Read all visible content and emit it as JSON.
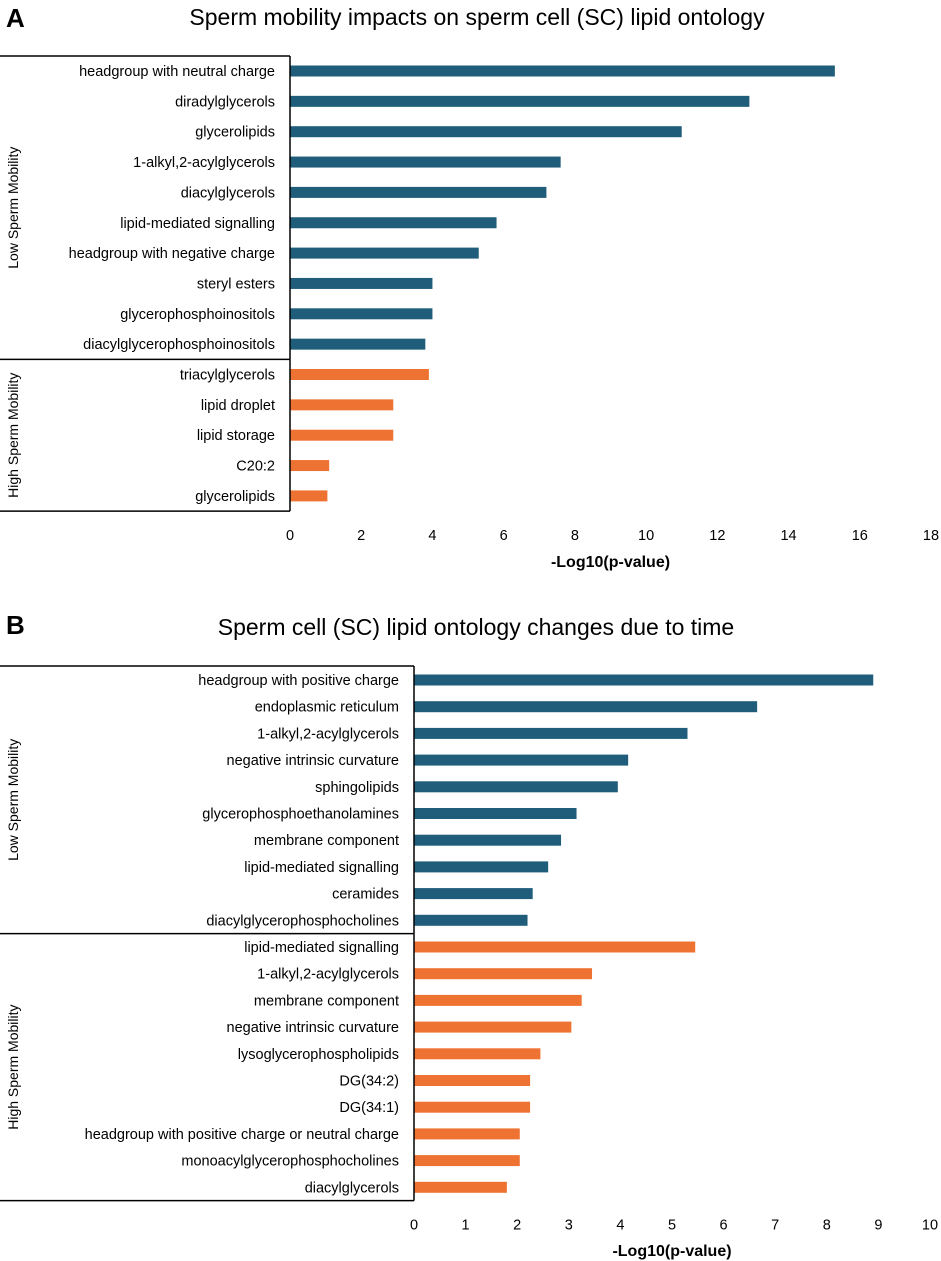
{
  "colors": {
    "low": "#1f5d7a",
    "high": "#ee7333",
    "frame": "#000000"
  },
  "chart_data": [
    {
      "type": "bar",
      "orientation": "horizontal",
      "panel_label": "A",
      "title": "Sperm mobility impacts on sperm cell (SC) lipid ontology",
      "xlabel": "-Log10(p-value)",
      "xlim": [
        0,
        18
      ],
      "xticks": [
        0,
        2,
        4,
        6,
        8,
        10,
        12,
        14,
        16,
        18
      ],
      "groups": [
        {
          "name": "Low Sperm Mobility",
          "color_key": "low",
          "categories": [
            "headgroup with neutral charge",
            "diradylglycerols",
            "glycerolipids",
            "1-alkyl,2-acylglycerols",
            "diacylglycerols",
            "lipid-mediated signalling",
            "headgroup with negative charge",
            "steryl esters",
            "glycerophosphoinositols",
            "diacylglycerophosphoinositols"
          ],
          "values": [
            15.3,
            12.9,
            11.0,
            7.6,
            7.2,
            5.8,
            5.3,
            4.0,
            4.0,
            3.8
          ]
        },
        {
          "name": "High Sperm Mobility",
          "color_key": "high",
          "categories": [
            "triacylglycerols",
            "lipid droplet",
            "lipid storage",
            "C20:2",
            "glycerolipids"
          ],
          "values": [
            3.9,
            2.9,
            2.9,
            1.1,
            1.05
          ]
        }
      ]
    },
    {
      "type": "bar",
      "orientation": "horizontal",
      "panel_label": "B",
      "title": "Sperm cell (SC) lipid ontology changes due to time",
      "xlabel": "-Log10(p-value)",
      "xlim": [
        0,
        10
      ],
      "xticks": [
        0,
        1,
        2,
        3,
        4,
        5,
        6,
        7,
        8,
        9,
        10
      ],
      "groups": [
        {
          "name": "Low Sperm Mobility",
          "color_key": "low",
          "categories": [
            "headgroup with positive charge",
            "endoplasmic reticulum",
            "1-alkyl,2-acylglycerols",
            "negative intrinsic curvature",
            "sphingolipids",
            "glycerophosphoethanolamines",
            "membrane component",
            "lipid-mediated signalling",
            "ceramides",
            "diacylglycerophosphocholines"
          ],
          "values": [
            8.9,
            6.65,
            5.3,
            4.15,
            3.95,
            3.15,
            2.85,
            2.6,
            2.3,
            2.2
          ]
        },
        {
          "name": "High Sperm Mobility",
          "color_key": "high",
          "categories": [
            "lipid-mediated signalling",
            "1-alkyl,2-acylglycerols",
            "membrane component",
            "negative intrinsic curvature",
            "lysoglycerophospholipids",
            "DG(34:2)",
            "DG(34:1)",
            "headgroup with positive charge or neutral charge",
            "monoacylglycerophosphocholines",
            "diacylglycerols"
          ],
          "values": [
            5.45,
            3.45,
            3.25,
            3.05,
            2.45,
            2.25,
            2.25,
            2.05,
            2.05,
            1.8
          ]
        }
      ]
    }
  ]
}
